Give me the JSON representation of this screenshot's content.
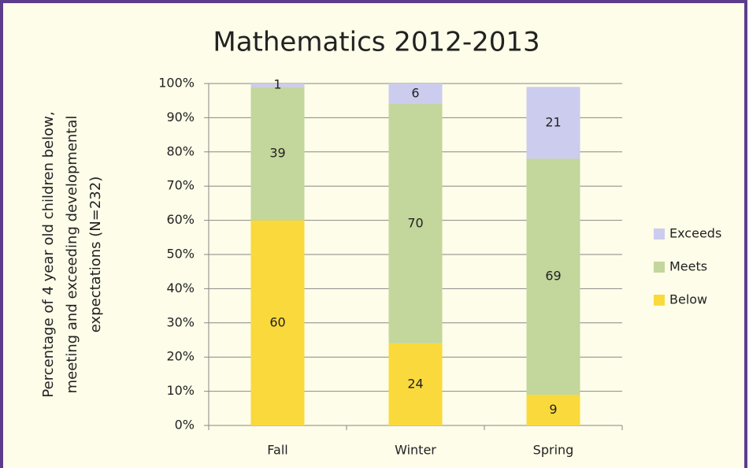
{
  "chart_data": {
    "type": "stacked_bar",
    "title": "Mathematics 2012-2013",
    "ylabel": [
      "Percentage of 4 year old children below,",
      "meeting and exceeding developmental",
      "expectations    (N=232)"
    ],
    "categories": [
      "Fall",
      "Winter",
      "Spring"
    ],
    "series": [
      {
        "name": "Below",
        "color": "#fad93c",
        "values": [
          60,
          24,
          9
        ]
      },
      {
        "name": "Meets",
        "color": "#c3d69b",
        "values": [
          39,
          70,
          69
        ]
      },
      {
        "name": "Exceeds",
        "color": "#ccccee",
        "values": [
          1,
          6,
          21
        ]
      }
    ],
    "ylim": [
      0,
      100
    ],
    "yticks": [
      {
        "value": 0,
        "label": "0%"
      },
      {
        "value": 10,
        "label": "10%"
      },
      {
        "value": 20,
        "label": "20%"
      },
      {
        "value": 30,
        "label": "30%"
      },
      {
        "value": 40,
        "label": "40%"
      },
      {
        "value": 50,
        "label": "50%"
      },
      {
        "value": 60,
        "label": "60%"
      },
      {
        "value": 70,
        "label": "70%"
      },
      {
        "value": 80,
        "label": "80%"
      },
      {
        "value": 90,
        "label": "90%"
      },
      {
        "value": 100,
        "label": "100%"
      }
    ],
    "grid": true,
    "legend": "right"
  }
}
